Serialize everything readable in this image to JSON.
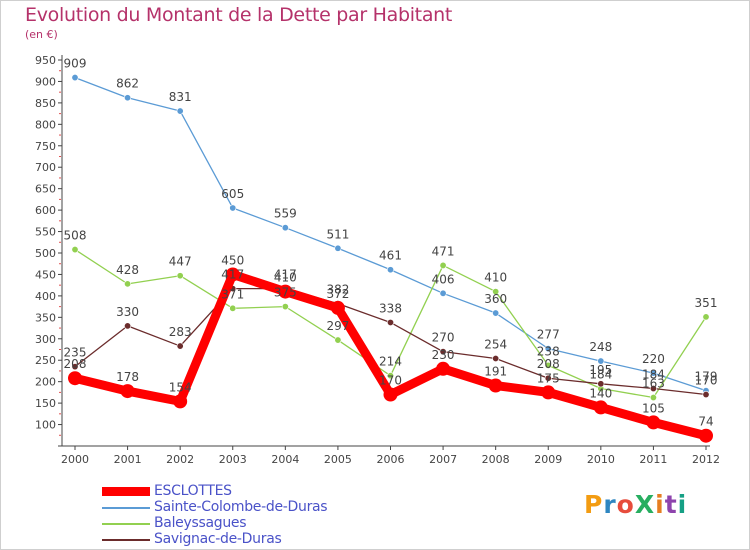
{
  "title": "Evolution du Montant de la Dette par Habitant",
  "subtitle": "(en €)",
  "logo": "ProXiti",
  "chart_data": {
    "type": "line",
    "title": "Evolution du Montant de la Dette par Habitant",
    "subtitle": "(en €)",
    "x": [
      "2000",
      "2001",
      "2002",
      "2003",
      "2004",
      "2005",
      "2006",
      "2007",
      "2008",
      "2009",
      "2010",
      "2011",
      "2012"
    ],
    "ylim": [
      50,
      950
    ],
    "yticks": [
      100,
      150,
      200,
      250,
      300,
      350,
      400,
      450,
      500,
      550,
      600,
      650,
      700,
      750,
      800,
      850,
      900,
      950
    ],
    "grid": false,
    "legend": "bottom-left",
    "series": [
      {
        "name": "ESCLOTTES",
        "color": "#ff0000",
        "values": [
          208,
          178,
          154,
          450,
          410,
          372,
          170,
          230,
          191,
          175,
          140,
          105,
          74
        ],
        "labels": [
          "208",
          "178",
          "154",
          "450",
          "410",
          "372",
          "170",
          "230",
          "191",
          "175",
          "140",
          "105",
          "74"
        ]
      },
      {
        "name": "Sainte-Colombe-de-Duras",
        "color": "#5b9bd5",
        "values": [
          909,
          862,
          831,
          605,
          559,
          511,
          461,
          406,
          360,
          277,
          248,
          220,
          179
        ],
        "labels": [
          "909",
          "862",
          "831",
          "605",
          "559",
          "511",
          "461",
          "406",
          "360",
          "277",
          "248",
          "220",
          "179"
        ]
      },
      {
        "name": "Baleyssagues",
        "color": "#92d050",
        "values": [
          508,
          428,
          447,
          371,
          375,
          297,
          214,
          471,
          410,
          238,
          184,
          163,
          351
        ],
        "labels": [
          "508",
          "428",
          "447",
          "371",
          "375",
          "297",
          "214",
          "471",
          "410",
          "238",
          "184",
          "163",
          "351"
        ]
      },
      {
        "name": "Savignac-de-Duras",
        "color": "#6b2c2c",
        "values": [
          235,
          330,
          283,
          417,
          417,
          382,
          338,
          270,
          254,
          208,
          195,
          184,
          170
        ],
        "labels": [
          "235",
          "330",
          "283",
          "417",
          "417",
          "382",
          "338",
          "270",
          "254",
          "208",
          "195",
          "184",
          "170"
        ]
      }
    ]
  },
  "logo_colors": [
    "#f39c12",
    "#2e86c1",
    "#e74c3c",
    "#27ae60",
    "#e67e22",
    "#8e44ad",
    "#16a085"
  ]
}
